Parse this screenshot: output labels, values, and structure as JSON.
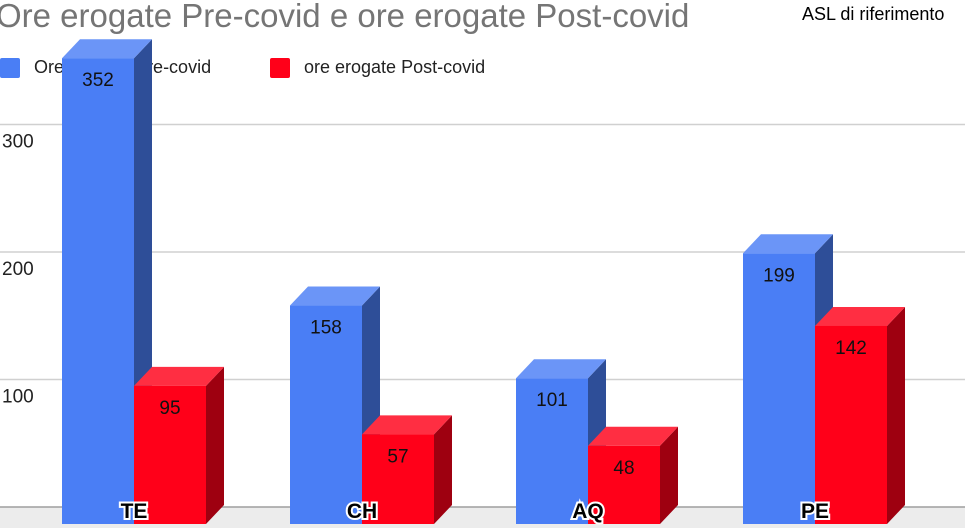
{
  "page": {
    "title": "Ore erogate Pre-covid e ore erogate Post-covid",
    "corner_label": "ASL di riferimento"
  },
  "legend": [
    {
      "label": "Ore erogate Pre-covid",
      "color": "#4a7ef5"
    },
    {
      "label": "ore erogate Post-covid",
      "color": "#ff0019"
    }
  ],
  "chart_data": {
    "type": "bar",
    "style": "3d-column",
    "title": "Ore erogate Pre-covid e ore erogate Post-covid",
    "categories": [
      "TE",
      "CH",
      "AQ",
      "PE"
    ],
    "series": [
      {
        "name": "Ore erogate Pre-covid",
        "values": [
          352,
          158,
          101,
          199
        ],
        "color": "#4a7ef5"
      },
      {
        "name": "ore erogate Post-covid",
        "values": [
          95,
          57,
          48,
          142
        ],
        "color": "#ff0019"
      }
    ],
    "y_ticks": [
      100,
      200,
      300
    ],
    "ylim": [
      0,
      352
    ],
    "grid": true,
    "legend_position": "top-left"
  }
}
